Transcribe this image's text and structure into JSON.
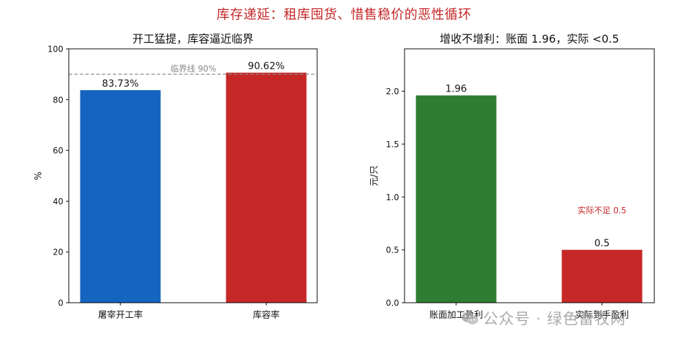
{
  "suptitle": "库存递延：租库囤货、惜售稳价的恶性循环",
  "watermark": "公众号 · 绿色畜牧网",
  "colors": {
    "suptitle": "#c62828",
    "blue": "#1565c0",
    "red": "#c62828",
    "green": "#2e7d32",
    "refline": "#8a8a8a"
  },
  "chart_data": [
    {
      "type": "bar",
      "title": "开工猛提，库容逼近临界",
      "xlabel": "",
      "ylabel": "%",
      "categories": [
        "屠宰开工率",
        "库容率"
      ],
      "values": [
        83.73,
        90.62
      ],
      "value_labels": [
        "83.73%",
        "90.62%"
      ],
      "bar_colors": [
        "#1565c0",
        "#c62828"
      ],
      "ylim": [
        0,
        100
      ],
      "yticks": [
        0,
        20,
        40,
        60,
        80,
        100
      ],
      "ytick_labels": [
        "0",
        "20",
        "40",
        "60",
        "80",
        "100"
      ],
      "reference_line": {
        "value": 90,
        "label": "临界线 90%",
        "style": "dashed",
        "color": "#8a8a8a"
      },
      "grid": false,
      "legend": "none"
    },
    {
      "type": "bar",
      "title": "增收不增利：账面 1.96，实际 <0.5",
      "xlabel": "",
      "ylabel": "元/只",
      "categories": [
        "账面加工盈利",
        "实际到手盈利"
      ],
      "values": [
        1.96,
        0.5
      ],
      "value_labels": [
        "1.96",
        "0.5"
      ],
      "bar_colors": [
        "#2e7d32",
        "#c62828"
      ],
      "ylim": [
        0,
        2.4
      ],
      "yticks": [
        0.0,
        0.5,
        1.0,
        1.5,
        2.0
      ],
      "ytick_labels": [
        "0.0",
        "0.5",
        "1.0",
        "1.5",
        "2.0"
      ],
      "annotations": [
        {
          "text": "实际不足 0.5",
          "x_index": 1,
          "y": 0.87,
          "color": "#c62828"
        }
      ],
      "grid": false,
      "legend": "none"
    }
  ]
}
